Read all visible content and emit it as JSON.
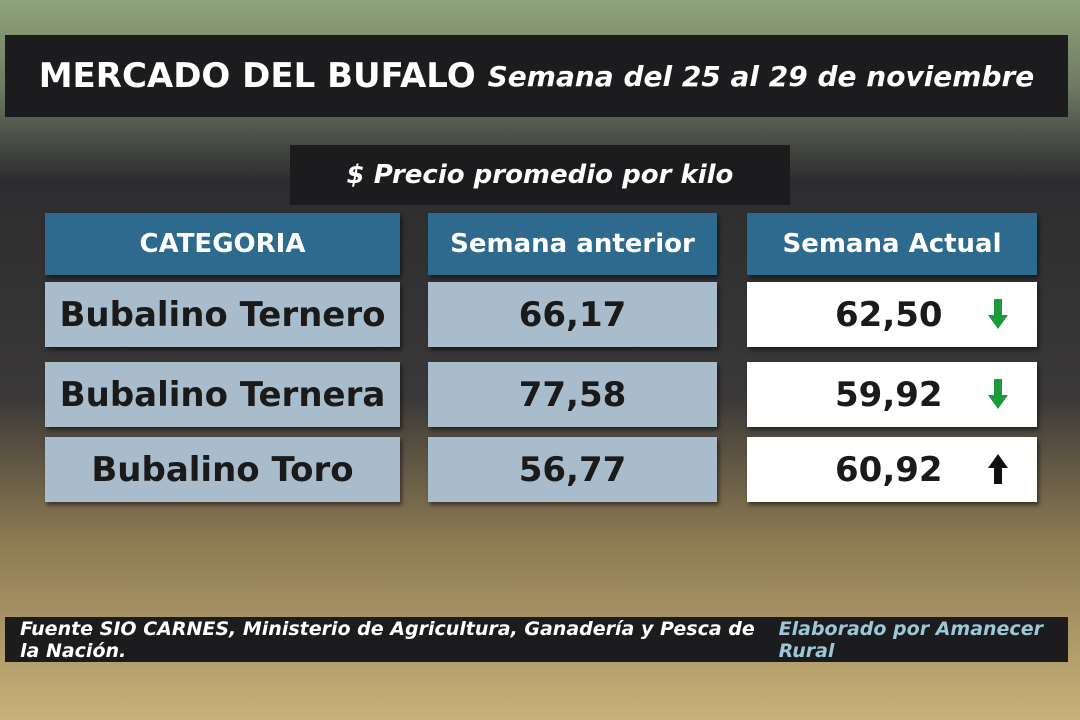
{
  "header": {
    "title": "MERCADO DEL BUFALO",
    "subtitle": "Semana del 25 al 29 de noviembre"
  },
  "caption": "$ Precio promedio por kilo",
  "table": {
    "columns": [
      "CATEGORIA",
      "Semana anterior",
      "Semana Actual"
    ],
    "rows": [
      [
        "Bubalino Ternero",
        "66,17",
        "62,50"
      ],
      [
        "Bubalino Ternera",
        "77,58",
        "59,92"
      ],
      [
        "Bubalino Toro",
        "56,77",
        "60,92"
      ]
    ],
    "trend": [
      "down",
      "down",
      "up"
    ],
    "trend_colors": {
      "down": "#1f9a3a",
      "up": "#111111"
    }
  },
  "footer": {
    "source": "Fuente SIO CARNES,  Ministerio de Agricultura, Ganadería y Pesca de la Nación.",
    "credit": "Elaborado por  Amanecer Rural"
  }
}
